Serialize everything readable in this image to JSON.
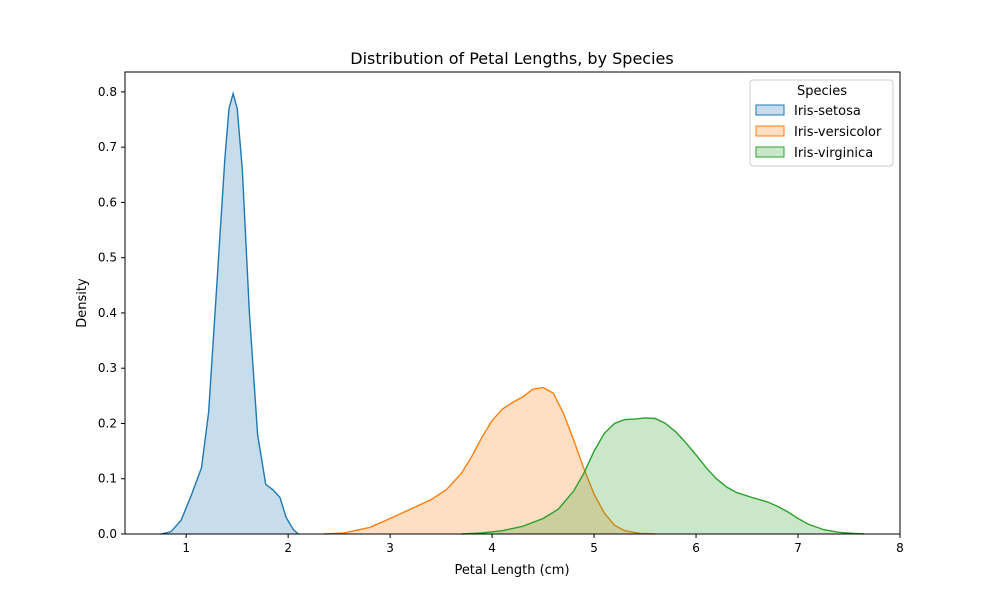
{
  "chart_data": {
    "type": "area",
    "title": "Distribution of Petal Lengths, by Species",
    "xlabel": "Petal Length (cm)",
    "ylabel": "Density",
    "xlim": [
      0.4,
      8.0
    ],
    "ylim": [
      0,
      0.836
    ],
    "xticks": [
      1,
      2,
      3,
      4,
      5,
      6,
      7,
      8
    ],
    "yticks": [
      0.0,
      0.1,
      0.2,
      0.3,
      0.4,
      0.5,
      0.6,
      0.7,
      0.8
    ],
    "grid": false,
    "legend": {
      "title": "Species",
      "placement": "top-right"
    },
    "series": [
      {
        "name": "Iris-setosa",
        "color": "#1f77b4",
        "points": [
          [
            0.75,
            0.0
          ],
          [
            0.85,
            0.004
          ],
          [
            0.95,
            0.025
          ],
          [
            1.05,
            0.07
          ],
          [
            1.15,
            0.12
          ],
          [
            1.22,
            0.22
          ],
          [
            1.3,
            0.45
          ],
          [
            1.38,
            0.68
          ],
          [
            1.42,
            0.77
          ],
          [
            1.46,
            0.797
          ],
          [
            1.5,
            0.77
          ],
          [
            1.55,
            0.66
          ],
          [
            1.62,
            0.4
          ],
          [
            1.7,
            0.18
          ],
          [
            1.78,
            0.09
          ],
          [
            1.85,
            0.08
          ],
          [
            1.92,
            0.066
          ],
          [
            1.98,
            0.03
          ],
          [
            2.05,
            0.008
          ],
          [
            2.1,
            0.0
          ]
        ]
      },
      {
        "name": "Iris-versicolor",
        "color": "#ff7f0e",
        "points": [
          [
            2.35,
            0.0
          ],
          [
            2.55,
            0.002
          ],
          [
            2.8,
            0.012
          ],
          [
            3.0,
            0.028
          ],
          [
            3.2,
            0.045
          ],
          [
            3.4,
            0.062
          ],
          [
            3.55,
            0.08
          ],
          [
            3.7,
            0.11
          ],
          [
            3.8,
            0.14
          ],
          [
            3.9,
            0.175
          ],
          [
            4.0,
            0.205
          ],
          [
            4.1,
            0.226
          ],
          [
            4.2,
            0.238
          ],
          [
            4.3,
            0.248
          ],
          [
            4.4,
            0.262
          ],
          [
            4.5,
            0.265
          ],
          [
            4.6,
            0.255
          ],
          [
            4.7,
            0.218
          ],
          [
            4.8,
            0.17
          ],
          [
            4.9,
            0.118
          ],
          [
            5.0,
            0.072
          ],
          [
            5.1,
            0.038
          ],
          [
            5.2,
            0.016
          ],
          [
            5.3,
            0.006
          ],
          [
            5.45,
            0.001
          ],
          [
            5.6,
            0.0
          ]
        ]
      },
      {
        "name": "Iris-virginica",
        "color": "#2ca02c",
        "points": [
          [
            3.7,
            0.0
          ],
          [
            3.9,
            0.002
          ],
          [
            4.1,
            0.006
          ],
          [
            4.3,
            0.014
          ],
          [
            4.5,
            0.028
          ],
          [
            4.65,
            0.045
          ],
          [
            4.8,
            0.078
          ],
          [
            4.9,
            0.11
          ],
          [
            5.0,
            0.15
          ],
          [
            5.1,
            0.182
          ],
          [
            5.2,
            0.2
          ],
          [
            5.3,
            0.207
          ],
          [
            5.4,
            0.208
          ],
          [
            5.5,
            0.21
          ],
          [
            5.6,
            0.209
          ],
          [
            5.7,
            0.2
          ],
          [
            5.8,
            0.185
          ],
          [
            5.9,
            0.165
          ],
          [
            6.0,
            0.143
          ],
          [
            6.1,
            0.12
          ],
          [
            6.2,
            0.1
          ],
          [
            6.3,
            0.085
          ],
          [
            6.4,
            0.075
          ],
          [
            6.55,
            0.066
          ],
          [
            6.7,
            0.058
          ],
          [
            6.8,
            0.05
          ],
          [
            6.9,
            0.04
          ],
          [
            7.0,
            0.028
          ],
          [
            7.1,
            0.018
          ],
          [
            7.25,
            0.008
          ],
          [
            7.4,
            0.003
          ],
          [
            7.55,
            0.001
          ],
          [
            7.65,
            0.0
          ]
        ]
      }
    ]
  }
}
